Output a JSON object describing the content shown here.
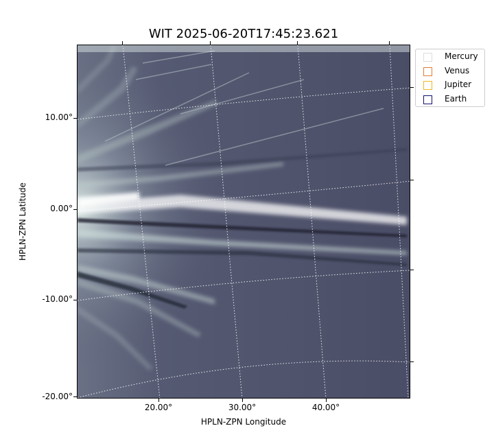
{
  "title": "WIT 2025-06-20T17:45:23.621",
  "xlabel": "HPLN-ZPN Longitude",
  "ylabel": "HPLN-ZPN Latitude",
  "x_ticks": [
    "20.00°",
    "30.00°",
    "40.00°"
  ],
  "y_ticks": [
    "10.00°",
    "0.00°",
    "-10.00°",
    "-20.00°"
  ],
  "legend": [
    {
      "name": "Mercury",
      "color": "#dddddd"
    },
    {
      "name": "Venus",
      "color": "#e07b39"
    },
    {
      "name": "Jupiter",
      "color": "#e8b828"
    },
    {
      "name": "Earth",
      "color": "#101070"
    }
  ],
  "image_colormap": [
    "#2f3145",
    "#4d5068",
    "#8a95a3",
    "#dff0ea",
    "#ffffff"
  ]
}
